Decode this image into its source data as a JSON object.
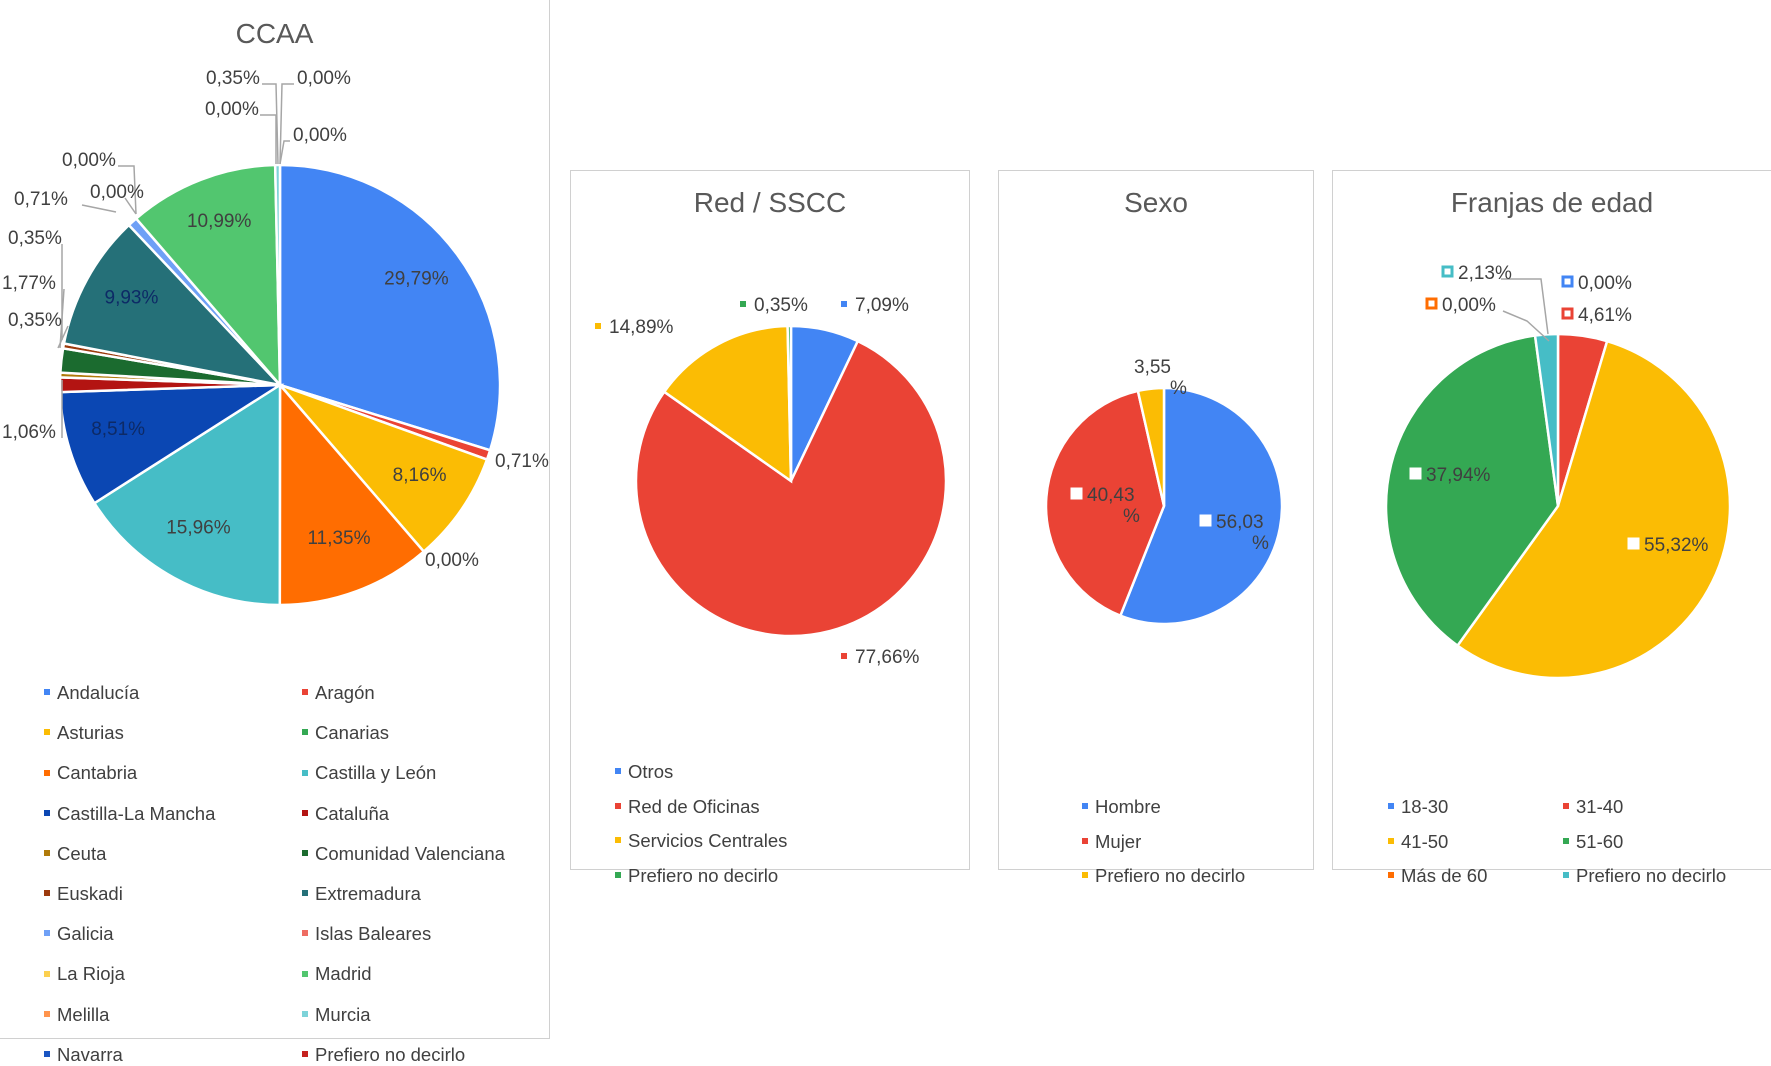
{
  "chart_data": [
    {
      "type": "pie",
      "title": "CCAA",
      "slices": [
        {
          "name": "Andalucía",
          "value": 29.79,
          "label": "29,79%",
          "color": "#4285f4"
        },
        {
          "name": "Aragón",
          "value": 0.71,
          "label": "0,71%",
          "color": "#ea4335"
        },
        {
          "name": "Asturias",
          "value": 8.16,
          "label": "8,16%",
          "color": "#fbbc04"
        },
        {
          "name": "Canarias",
          "value": 0.0,
          "label": "0,00%",
          "color": "#34a853"
        },
        {
          "name": "Cantabria",
          "value": 11.35,
          "label": "11,35%",
          "color": "#ff6d01"
        },
        {
          "name": "Castilla y León",
          "value": 15.96,
          "label": "15,96%",
          "color": "#46bdc6"
        },
        {
          "name": "Castilla-La Mancha",
          "value": 8.51,
          "label": "8,51%",
          "color": "#0b47b3"
        },
        {
          "name": "Cataluña",
          "value": 1.06,
          "label": "1,06%",
          "color": "#b31412"
        },
        {
          "name": "Ceuta",
          "value": 0.35,
          "label": "0,35%",
          "color": "#b07a0a"
        },
        {
          "name": "Comunidad Valenciana",
          "value": 1.77,
          "label": "1,77%",
          "color": "#1b6b2f"
        },
        {
          "name": "Euskadi",
          "value": 0.35,
          "label": "0,35%",
          "color": "#9c3a0c"
        },
        {
          "name": "Extremadura",
          "value": 9.93,
          "label": "9,93%",
          "color": "#257078"
        },
        {
          "name": "Galicia",
          "value": 0.71,
          "label": "0,71%",
          "color": "#6fa0f6"
        },
        {
          "name": "Islas Baleares",
          "value": 0.0,
          "label": "0,00%",
          "color": "#ee6c62"
        },
        {
          "name": "La Rioja",
          "value": 0.0,
          "label": "0,00%",
          "color": "#fcd04f"
        },
        {
          "name": "Madrid",
          "value": 10.99,
          "label": "10,99%",
          "color": "#52c66f"
        },
        {
          "name": "Melilla",
          "value": 0.0,
          "label": "0,00%",
          "color": "#ff944d"
        },
        {
          "name": "Murcia",
          "value": 0.35,
          "label": "0,35%",
          "color": "#7dd3d9"
        },
        {
          "name": "Navarra",
          "value": 0.0,
          "label": "0,00%",
          "color": "#1a55c2"
        },
        {
          "name": "Prefiero no decirlo",
          "value": 0.0,
          "label": "0,00%",
          "color": "#c5221f"
        }
      ]
    },
    {
      "type": "pie",
      "title": "Red / SSCC",
      "slices": [
        {
          "name": "Otros",
          "value": 7.09,
          "label": "7,09%",
          "color": "#4285f4"
        },
        {
          "name": "Red de Oficinas",
          "value": 77.66,
          "label": "77,66%",
          "color": "#ea4335"
        },
        {
          "name": "Servicios Centrales",
          "value": 14.89,
          "label": "14,89%",
          "color": "#fbbc04"
        },
        {
          "name": "Prefiero no decirlo",
          "value": 0.35,
          "label": "0,35%",
          "color": "#34a853"
        }
      ]
    },
    {
      "type": "pie",
      "title": "Sexo",
      "slices": [
        {
          "name": "Hombre",
          "value": 56.03,
          "label": "56,03 %",
          "color": "#4285f4"
        },
        {
          "name": "Mujer",
          "value": 40.43,
          "label": "40,43 %",
          "color": "#ea4335"
        },
        {
          "name": "Prefiero no decirlo",
          "value": 3.55,
          "label": "3,55 %",
          "color": "#fbbc04"
        }
      ]
    },
    {
      "type": "pie",
      "title": "Franjas de edad",
      "slices": [
        {
          "name": "18-30",
          "value": 0.0,
          "label": "0,00%",
          "color": "#4285f4"
        },
        {
          "name": "31-40",
          "value": 4.61,
          "label": "4,61%",
          "color": "#ea4335"
        },
        {
          "name": "41-50",
          "value": 55.32,
          "label": "55,32%",
          "color": "#fbbc04"
        },
        {
          "name": "51-60",
          "value": 37.94,
          "label": "37,94%",
          "color": "#34a853"
        },
        {
          "name": "Más de 60",
          "value": 0.0,
          "label": "0,00%",
          "color": "#ff6d01"
        },
        {
          "name": "Prefiero no decirlo",
          "value": 2.13,
          "label": "2,13%",
          "color": "#46bdc6"
        }
      ]
    }
  ]
}
